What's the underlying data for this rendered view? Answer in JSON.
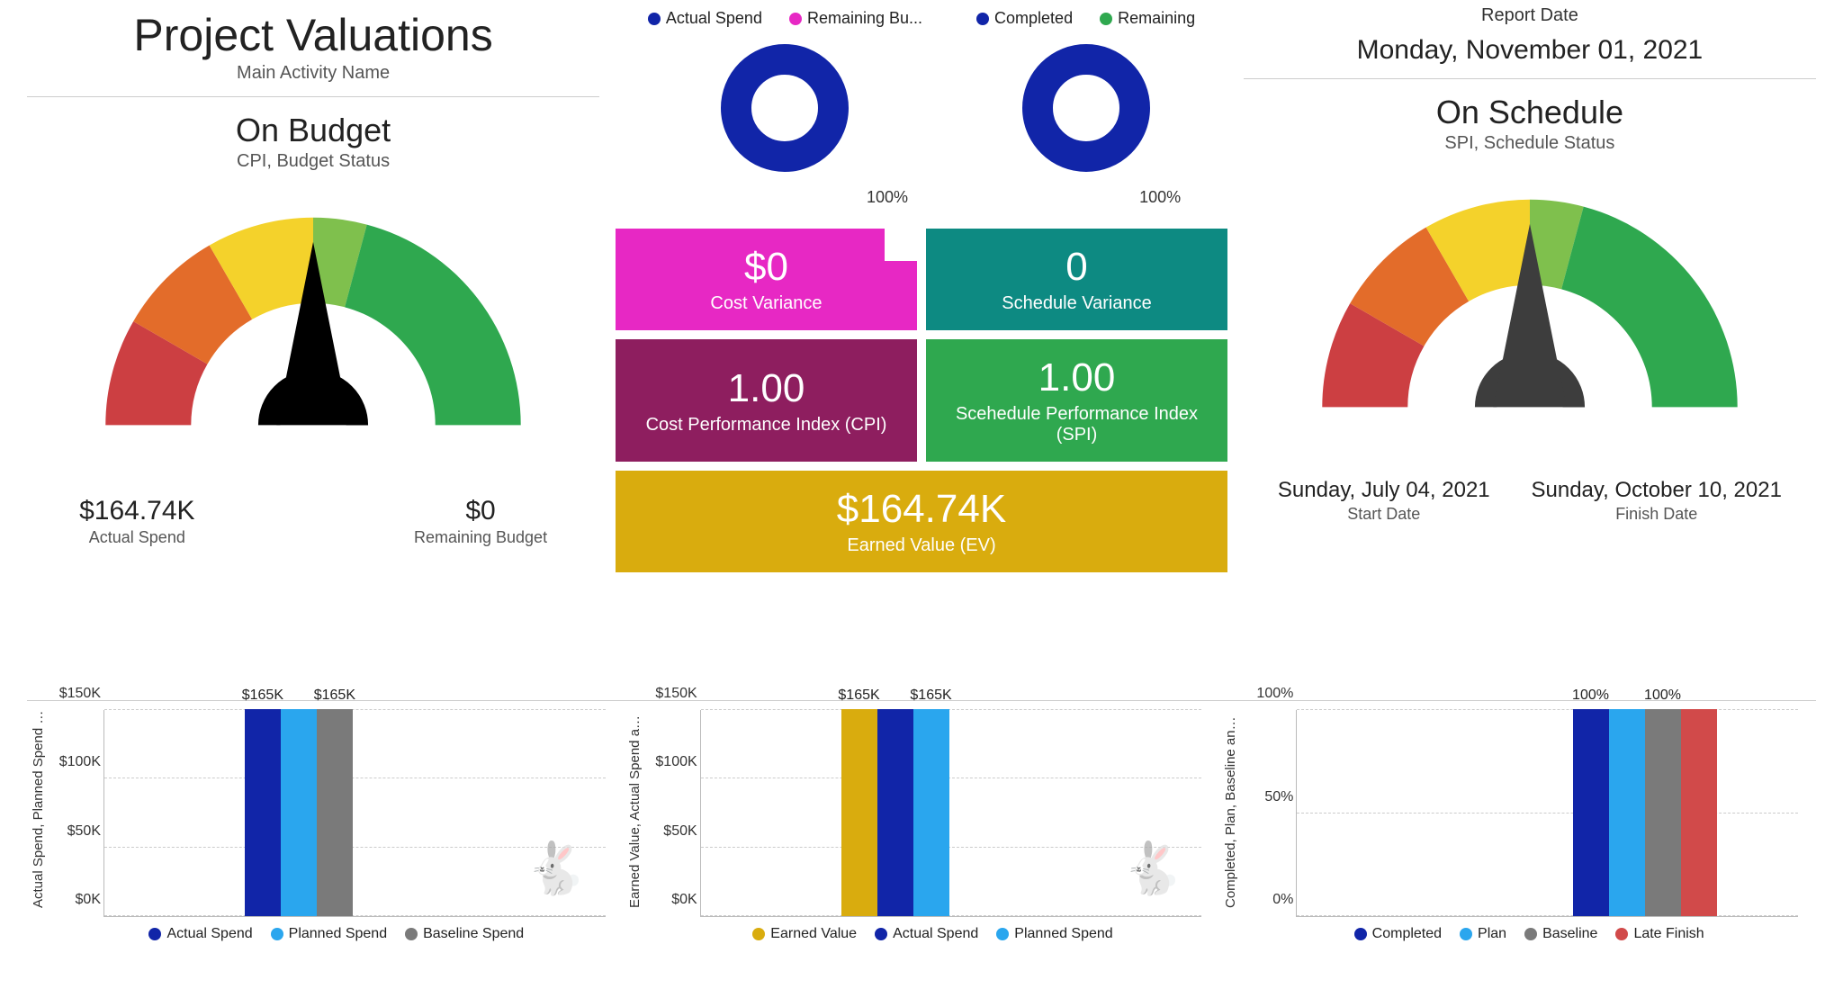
{
  "header": {
    "title": "Project Valuations",
    "subtitle": "Main Activity Name",
    "report_date_label": "Report Date",
    "report_date": "Monday, November 01, 2021"
  },
  "budget_gauge": {
    "title": "On Budget",
    "subtitle": "CPI, Budget Status",
    "segments": [
      {
        "color": "#cc3f42",
        "start": 180,
        "end": 210
      },
      {
        "color": "#e36c2a",
        "start": 210,
        "end": 240
      },
      {
        "color": "#f4d22b",
        "start": 240,
        "end": 270
      },
      {
        "color": "#7fc04d",
        "start": 270,
        "end": 285
      },
      {
        "color": "#2fa84f",
        "start": 285,
        "end": 360
      }
    ],
    "needle_angle": 270,
    "needle_color": "#000000",
    "stat_left_value": "$164.74K",
    "stat_left_label": "Actual Spend",
    "stat_right_value": "$0",
    "stat_right_label": "Remaining Budget"
  },
  "schedule_gauge": {
    "title": "On Schedule",
    "subtitle": "SPI, Schedule Status",
    "segments": [
      {
        "color": "#cc3f42",
        "start": 180,
        "end": 210
      },
      {
        "color": "#e36c2a",
        "start": 210,
        "end": 240
      },
      {
        "color": "#f4d22b",
        "start": 240,
        "end": 270
      },
      {
        "color": "#7fc04d",
        "start": 270,
        "end": 285
      },
      {
        "color": "#2fa84f",
        "start": 285,
        "end": 360
      }
    ],
    "needle_angle": 270,
    "needle_color": "#3d3d3d",
    "date_left_value": "Sunday, July 04, 2021",
    "date_left_label": "Start Date",
    "date_right_value": "Sunday, October 10, 2021",
    "date_right_label": "Finish Date"
  },
  "donuts": {
    "left": {
      "legend": [
        {
          "color": "#1125a8",
          "label": "Actual Spend"
        },
        {
          "color": "#e728c4",
          "label": "Remaining Bu..."
        }
      ],
      "ring_color": "#1125a8",
      "percent_label": "100%"
    },
    "right": {
      "legend": [
        {
          "color": "#1125a8",
          "label": "Completed"
        },
        {
          "color": "#2fa84f",
          "label": "Remaining"
        }
      ],
      "ring_color": "#1125a8",
      "percent_label": "100%"
    }
  },
  "cards": {
    "cost_variance": {
      "value": "$0",
      "label": "Cost Variance",
      "bg": "#e728c4"
    },
    "schedule_variance": {
      "value": "0",
      "label": "Schedule Variance",
      "bg": "#0d8a82"
    },
    "cpi": {
      "value": "1.00",
      "label": "Cost Performance Index (CPI)",
      "bg": "#8e1e5f"
    },
    "spi": {
      "value": "1.00",
      "label": "Scehedule Performance Index (SPI)",
      "bg": "#2fa84f"
    },
    "earned_value": {
      "value": "$164.74K",
      "label": "Earned Value (EV)",
      "bg": "#d9ac0e"
    }
  },
  "bottom_charts": {
    "chart1": {
      "y_title": "Actual Spend, Planned Spend and ...",
      "y_max": 165,
      "y_ticks": [
        "$0K",
        "$50K",
        "$100K",
        "$150K"
      ],
      "bars": [
        {
          "color": "#1125a8",
          "value": 165,
          "label": "$165K"
        },
        {
          "color": "#2aa6ee",
          "value": 165,
          "label": ""
        },
        {
          "color": "#7a7a7a",
          "value": 165,
          "label": "$165K"
        }
      ],
      "legend": [
        {
          "color": "#1125a8",
          "label": "Actual Spend"
        },
        {
          "color": "#2aa6ee",
          "label": "Planned Spend"
        },
        {
          "color": "#7a7a7a",
          "label": "Baseline Spend"
        }
      ],
      "icon": "rabbit"
    },
    "chart2": {
      "y_title": "Earned Value, Actual Spend and Pl...",
      "y_max": 165,
      "y_ticks": [
        "$0K",
        "$50K",
        "$100K",
        "$150K"
      ],
      "bars": [
        {
          "color": "#d9ac0e",
          "value": 165,
          "label": "$165K"
        },
        {
          "color": "#1125a8",
          "value": 165,
          "label": ""
        },
        {
          "color": "#2aa6ee",
          "value": 165,
          "label": "$165K"
        }
      ],
      "legend": [
        {
          "color": "#d9ac0e",
          "label": "Earned Value"
        },
        {
          "color": "#1125a8",
          "label": "Actual Spend"
        },
        {
          "color": "#2aa6ee",
          "label": "Planned Spend"
        }
      ],
      "icon": "rabbit"
    },
    "chart3": {
      "y_title": "Completed, Plan, Baseline and Lat...",
      "y_max": 100,
      "y_ticks": [
        "0%",
        "50%",
        "100%"
      ],
      "bars": [
        {
          "color": "#1125a8",
          "value": 100,
          "label": "100%"
        },
        {
          "color": "#2aa6ee",
          "value": 100,
          "label": ""
        },
        {
          "color": "#7a7a7a",
          "value": 100,
          "label": "100%"
        },
        {
          "color": "#d14a4a",
          "value": 100,
          "label": ""
        }
      ],
      "legend": [
        {
          "color": "#1125a8",
          "label": "Completed"
        },
        {
          "color": "#2aa6ee",
          "label": "Plan"
        },
        {
          "color": "#7a7a7a",
          "label": "Baseline"
        },
        {
          "color": "#d14a4a",
          "label": "Late Finish"
        }
      ],
      "icon": null
    }
  }
}
